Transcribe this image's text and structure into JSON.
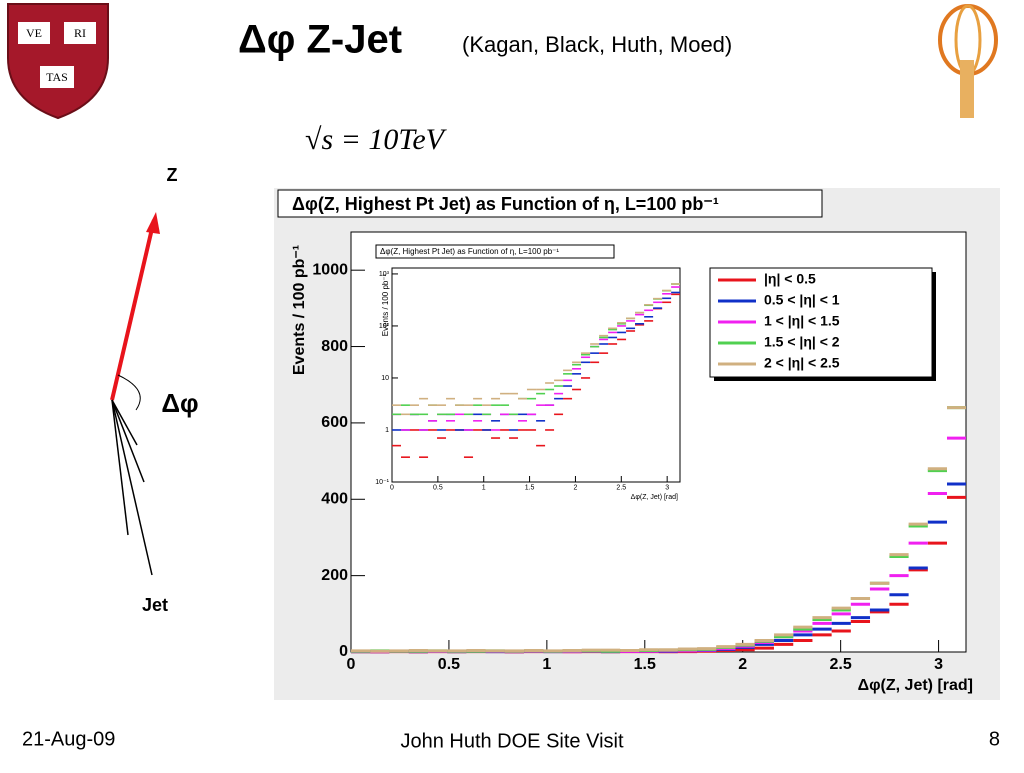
{
  "slide": {
    "title": "Δφ Z-Jet",
    "subtitle": "(Kagan, Black, Huth, Moed)",
    "formula": "√s = 10TeV",
    "shield": [
      "VE",
      "RI",
      "TAS"
    ],
    "diagram": {
      "z_label": "Z",
      "angle_label": "Δφ",
      "jet_label": "Jet"
    },
    "footer": {
      "date": "21-Aug-09",
      "center": "John Huth DOE Site Visit",
      "page": "8"
    }
  },
  "chart_data": [
    {
      "type": "line",
      "title": "Δφ(Z, Highest Pt Jet) as Function of η, L=100 pb⁻¹",
      "xlabel": "Δφ(Z, Jet) [rad]",
      "ylabel": "Events / 100 pb⁻¹",
      "x": [
        0.049,
        0.147,
        0.245,
        0.344,
        0.442,
        0.54,
        0.638,
        0.736,
        0.834,
        0.933,
        1.031,
        1.129,
        1.227,
        1.325,
        1.423,
        1.521,
        1.62,
        1.718,
        1.816,
        1.914,
        2.012,
        2.11,
        2.209,
        2.307,
        2.405,
        2.503,
        2.601,
        2.699,
        2.798,
        2.896,
        2.994,
        3.092
      ],
      "xlim": [
        0,
        3.14
      ],
      "xticks": [
        0,
        0.5,
        1,
        1.5,
        2,
        2.5,
        3
      ],
      "ylim": [
        0,
        1100
      ],
      "yticks": [
        0,
        200,
        400,
        600,
        800,
        1000
      ],
      "legend": "upper right",
      "series": [
        {
          "name": "|η| < 0.5",
          "color": "#e8141c",
          "values": [
            0.5,
            0.3,
            1,
            0.3,
            1,
            0.7,
            1,
            1,
            0.3,
            1,
            1,
            0.7,
            1,
            0.7,
            1,
            1,
            0.5,
            1,
            2,
            4,
            6,
            10,
            20,
            30,
            45,
            55,
            80,
            105,
            125,
            215,
            285,
            405
          ]
        },
        {
          "name": "0.5 < |η| < 1",
          "color": "#1030c8",
          "values": [
            1,
            1,
            2,
            1,
            1.5,
            1,
            2,
            1,
            1,
            2,
            1,
            1.5,
            2,
            1,
            2,
            2,
            1.5,
            3,
            4,
            7,
            12,
            20,
            30,
            45,
            60,
            75,
            90,
            110,
            150,
            220,
            340,
            440
          ]
        },
        {
          "name": "1 < |η| < 1.5",
          "color": "#f020f0",
          "values": [
            2,
            1,
            2,
            1,
            1.5,
            2,
            1.5,
            2,
            1,
            1.5,
            2,
            1,
            2,
            2,
            1.5,
            2,
            3,
            3,
            5,
            9,
            15,
            25,
            40,
            55,
            75,
            100,
            125,
            165,
            200,
            285,
            415,
            560
          ]
        },
        {
          "name": "1.5 < |η| < 2",
          "color": "#50d050",
          "values": [
            2,
            3,
            2,
            2,
            3,
            2,
            2,
            3,
            2,
            3,
            2,
            3,
            3,
            2,
            4,
            4,
            5,
            6,
            7,
            12,
            18,
            28,
            40,
            60,
            85,
            110,
            140,
            180,
            250,
            330,
            475,
            640
          ]
        },
        {
          "name": "2 < |η| < 2.5",
          "color": "#d0b080",
          "values": [
            3,
            2,
            3,
            4,
            3,
            3,
            4,
            3,
            3,
            4,
            3,
            4,
            5,
            5,
            4,
            6,
            6,
            8,
            9,
            14,
            20,
            30,
            45,
            65,
            90,
            115,
            140,
            180,
            255,
            335,
            480,
            640
          ]
        }
      ]
    },
    {
      "type": "line",
      "title": "Δφ(Z, Highest Pt Jet) as Function of η, L=100 pb⁻¹",
      "xlabel": "Δφ(Z, Jet) [rad]",
      "ylabel": "Events / 100 pb⁻¹",
      "log_y": true,
      "x": [
        0.049,
        0.147,
        0.245,
        0.344,
        0.442,
        0.54,
        0.638,
        0.736,
        0.834,
        0.933,
        1.031,
        1.129,
        1.227,
        1.325,
        1.423,
        1.521,
        1.62,
        1.718,
        1.816,
        1.914,
        2.012,
        2.11,
        2.209,
        2.307,
        2.405,
        2.503,
        2.601,
        2.699,
        2.798,
        2.896,
        2.994,
        3.092
      ],
      "xlim": [
        0,
        3.14
      ],
      "xticks": [
        0,
        0.5,
        1,
        1.5,
        2,
        2.5,
        3
      ],
      "ylim": [
        0.1,
        1300
      ],
      "yticks": [
        {
          "value": 0.1,
          "label": "10⁻¹"
        },
        1,
        10,
        {
          "value": 100,
          "label": "10²"
        },
        {
          "value": 1000,
          "label": "10³"
        }
      ],
      "series": [
        {
          "color": "#e8141c",
          "values": [
            0.5,
            0.3,
            1,
            0.3,
            1,
            0.7,
            1,
            1,
            0.3,
            1,
            1,
            0.7,
            1,
            0.7,
            1,
            1,
            0.5,
            1,
            2,
            4,
            6,
            10,
            20,
            30,
            45,
            55,
            80,
            105,
            125,
            215,
            285,
            405
          ]
        },
        {
          "color": "#1030c8",
          "values": [
            1,
            1,
            2,
            1,
            1.5,
            1,
            2,
            1,
            1,
            2,
            1,
            1.5,
            2,
            1,
            2,
            2,
            1.5,
            3,
            4,
            7,
            12,
            20,
            30,
            45,
            60,
            75,
            90,
            110,
            150,
            220,
            340,
            440
          ]
        },
        {
          "color": "#f020f0",
          "values": [
            2,
            1,
            2,
            1,
            1.5,
            2,
            1.5,
            2,
            1,
            1.5,
            2,
            1,
            2,
            2,
            1.5,
            2,
            3,
            3,
            5,
            9,
            15,
            25,
            40,
            55,
            75,
            100,
            125,
            165,
            200,
            285,
            415,
            560
          ]
        },
        {
          "color": "#50d050",
          "values": [
            2,
            3,
            2,
            2,
            3,
            2,
            2,
            3,
            2,
            3,
            2,
            3,
            3,
            2,
            4,
            4,
            5,
            6,
            7,
            12,
            18,
            28,
            40,
            60,
            85,
            110,
            140,
            180,
            250,
            330,
            475,
            640
          ]
        },
        {
          "color": "#d0b080",
          "values": [
            3,
            2,
            3,
            4,
            3,
            3,
            4,
            3,
            3,
            4,
            3,
            4,
            5,
            5,
            4,
            6,
            6,
            8,
            9,
            14,
            20,
            30,
            45,
            65,
            90,
            115,
            140,
            180,
            255,
            335,
            480,
            640
          ]
        }
      ]
    }
  ]
}
